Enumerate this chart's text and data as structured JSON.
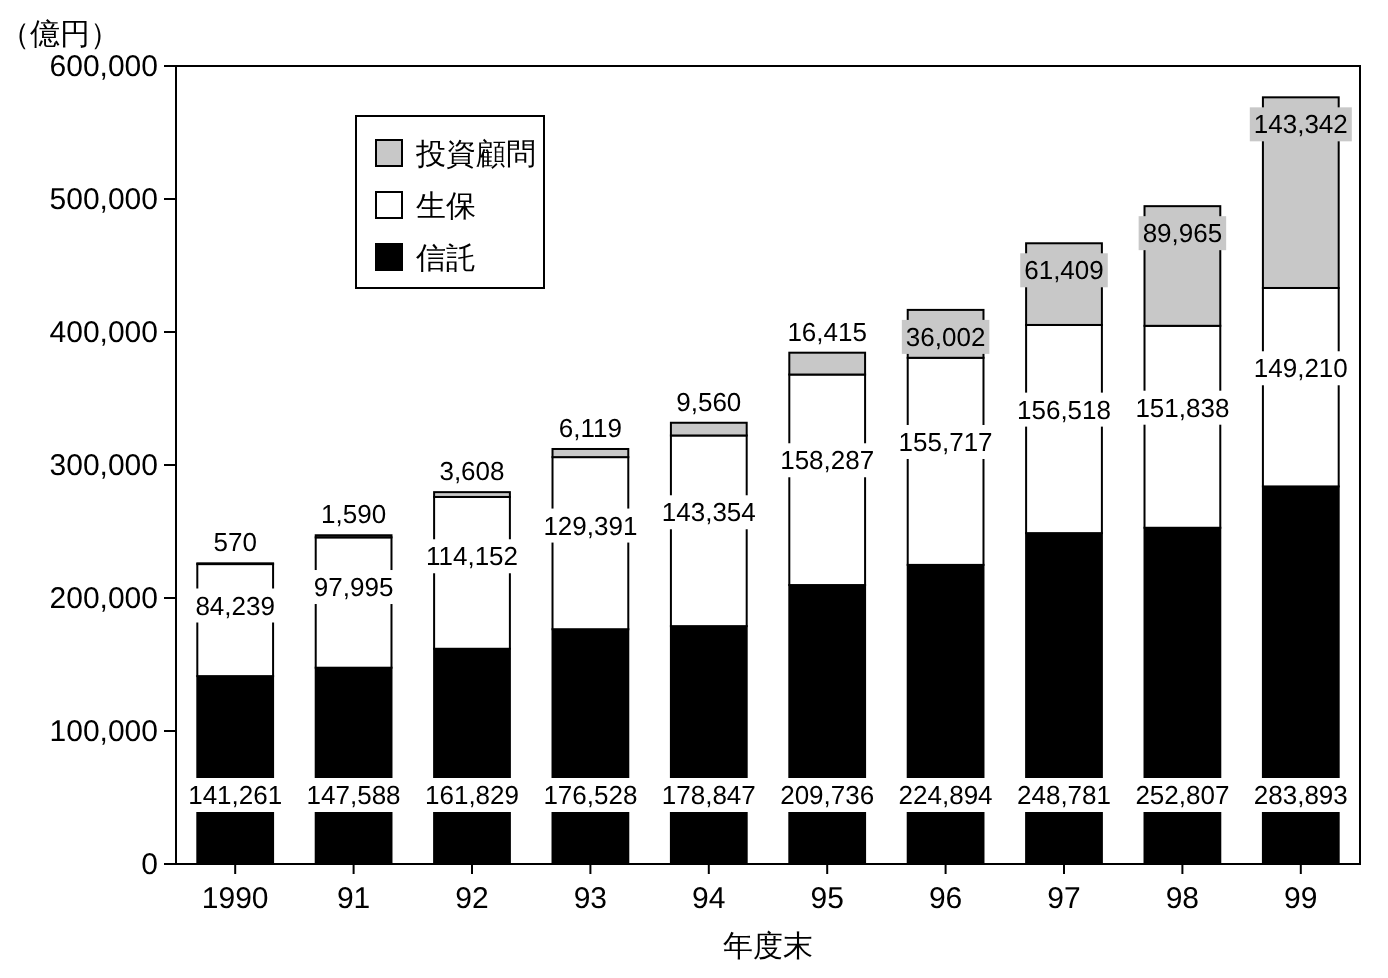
{
  "chart_data": {
    "type": "bar",
    "stacked": true,
    "ylabel": "（億円）",
    "xlabel": "年度末",
    "categories": [
      "1990",
      "91",
      "92",
      "93",
      "94",
      "95",
      "96",
      "97",
      "98",
      "99"
    ],
    "series": [
      {
        "name": "信託",
        "color": "#000000",
        "values": [
          141261,
          147588,
          161829,
          176528,
          178847,
          209736,
          224894,
          248781,
          252807,
          283893
        ],
        "value_labels": [
          "141,261",
          "147,588",
          "161,829",
          "176,528",
          "178,847",
          "209,736",
          "224,894",
          "248,781",
          "252,807",
          "283,893"
        ]
      },
      {
        "name": "生保",
        "color": "#ffffff",
        "values": [
          84239,
          97995,
          114152,
          129391,
          143354,
          158287,
          155717,
          156518,
          151838,
          149210
        ],
        "value_labels": [
          "84,239",
          "97,995",
          "114,152",
          "129,391",
          "143,354",
          "158,287",
          "155,717",
          "156,518",
          "151,838",
          "149,210"
        ]
      },
      {
        "name": "投資顧問",
        "color": "#c8c8c8",
        "values": [
          570,
          1590,
          3608,
          6119,
          9560,
          16415,
          36002,
          61409,
          89965,
          143342
        ],
        "value_labels": [
          "570",
          "1,590",
          "3,608",
          "6,119",
          "9,560",
          "16,415",
          "36,002",
          "61,409",
          "89,965",
          "143,342"
        ]
      }
    ],
    "ylim": [
      0,
      600000
    ],
    "yticks": [
      0,
      {
        "value": 100000,
        "label": "100,000"
      },
      {
        "value": 200000,
        "label": "200,000"
      },
      {
        "value": 300000,
        "label": "300,000"
      },
      {
        "value": 400000,
        "label": "400,000"
      },
      {
        "value": 500000,
        "label": "500,000"
      },
      {
        "value": 600000,
        "label": "600,000"
      }
    ],
    "legend": "top left",
    "grid": false
  }
}
